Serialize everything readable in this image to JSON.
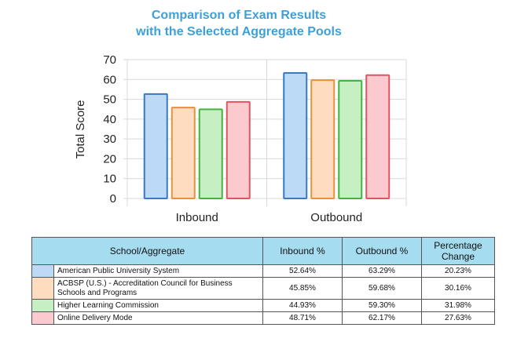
{
  "chart_data": {
    "type": "bar",
    "title": "Comparison of Exam Results",
    "subtitle": "with the Selected Aggregate Pools",
    "ylabel": "Total Score",
    "xlabel": "",
    "ylim": [
      0,
      70
    ],
    "yticks": [
      0,
      10,
      20,
      30,
      40,
      50,
      60,
      70
    ],
    "grid": true,
    "categories": [
      "Inbound",
      "Outbound"
    ],
    "series": [
      {
        "name": "American Public University System",
        "values": [
          52.64,
          63.29
        ],
        "fill": "#bcd9f5",
        "stroke": "#3b78c4"
      },
      {
        "name": "ACBSP (U.S.) - Accreditation Council for Business Schools and Programs",
        "values": [
          45.85,
          59.68
        ],
        "fill": "#fddcc0",
        "stroke": "#e8913c"
      },
      {
        "name": "Higher Learning Commission",
        "values": [
          44.93,
          59.3
        ],
        "fill": "#c7efc4",
        "stroke": "#45b23e"
      },
      {
        "name": "Online Delivery Mode",
        "values": [
          48.71,
          62.17
        ],
        "fill": "#fcc9ce",
        "stroke": "#e0545f"
      }
    ]
  },
  "table": {
    "headers": {
      "school": "School/Aggregate",
      "inbound": "Inbound %",
      "outbound": "Outbound %",
      "change_line1": "Percentage",
      "change_line2": "Change"
    },
    "rows": [
      {
        "name": "American Public University System",
        "inbound": "52.64%",
        "outbound": "63.29%",
        "change": "20.23%"
      },
      {
        "name_line1": "ACBSP (U.S.) - Accreditation Council for Business",
        "name_line2": "Schools and Programs",
        "inbound": "45.85%",
        "outbound": "59.68%",
        "change": "30.16%"
      },
      {
        "name": "Higher Learning Commission",
        "inbound": "44.93%",
        "outbound": "59.30%",
        "change": "31.98%"
      },
      {
        "name": "Online Delivery Mode",
        "inbound": "48.71%",
        "outbound": "62.17%",
        "change": "27.63%"
      }
    ]
  }
}
